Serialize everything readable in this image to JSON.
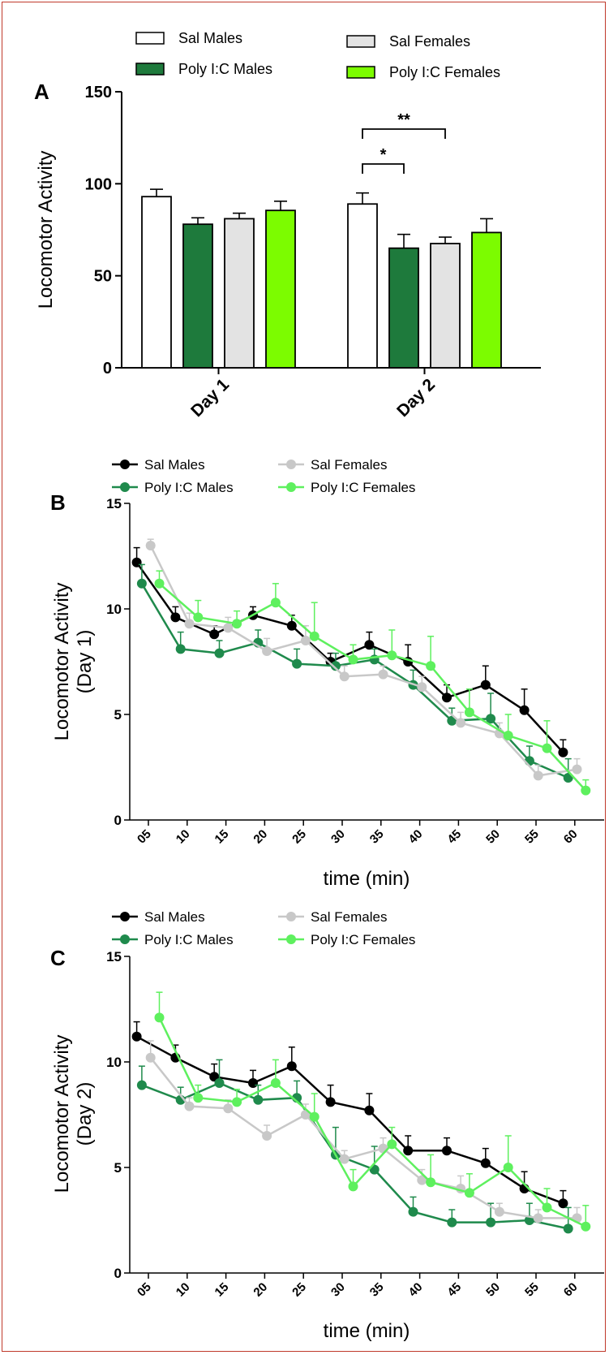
{
  "chart_data": [
    {
      "panel": "A",
      "type": "bar",
      "ylabel": "Locomotor Activity",
      "ylim": [
        0,
        150
      ],
      "yticks": [
        "0",
        "50",
        "100",
        "150"
      ],
      "categories": [
        "Day 1",
        "Day 2"
      ],
      "series": [
        {
          "name": "Sal Males",
          "color": "#ffffff",
          "values": [
            93,
            89
          ],
          "errors": [
            4,
            6
          ]
        },
        {
          "name": "Poly I:C Males",
          "color": "#1e7a3c",
          "values": [
            78,
            65
          ],
          "errors": [
            3.5,
            7.5
          ]
        },
        {
          "name": "Sal Females",
          "color": "#e3e3e3",
          "values": [
            81,
            67.5
          ],
          "errors": [
            3,
            3.5
          ]
        },
        {
          "name": "Poly I:C Females",
          "color": "#7cfc00",
          "values": [
            85.5,
            73.5
          ],
          "errors": [
            5,
            7.5
          ]
        }
      ],
      "significance": [
        {
          "label": "*",
          "category": "Day 2",
          "from": "Sal Males",
          "to": "Poly I:C Males"
        },
        {
          "label": "**",
          "category": "Day 2",
          "from": "Sal Males",
          "to": "Sal Females"
        }
      ]
    },
    {
      "panel": "B",
      "type": "line",
      "ylabel": "Locomotor Activity (Day 1)",
      "xlabel": "time (min)",
      "ylim": [
        0,
        15
      ],
      "yticks": [
        "0",
        "5",
        "10",
        "15"
      ],
      "x": [
        "05",
        "10",
        "15",
        "20",
        "25",
        "30",
        "35",
        "40",
        "45",
        "50",
        "55",
        "60"
      ],
      "series": [
        {
          "name": "Sal Males",
          "color": "#000000",
          "offset": -1.6,
          "values": [
            12.2,
            9.6,
            8.8,
            9.7,
            9.2,
            7.5,
            8.3,
            7.5,
            5.8,
            6.4,
            5.2,
            3.2
          ],
          "errors": [
            0.7,
            0.5,
            0.4,
            0.4,
            0.5,
            0.4,
            0.6,
            0.8,
            0.6,
            0.9,
            1.0,
            0.6
          ]
        },
        {
          "name": "Poly I:C Males",
          "color": "#1f8a4c",
          "offset": -0.9,
          "values": [
            11.2,
            8.1,
            7.9,
            8.4,
            7.4,
            7.3,
            7.6,
            6.4,
            4.7,
            4.8,
            2.8,
            2.0
          ],
          "errors": [
            0.9,
            0.8,
            0.6,
            0.6,
            0.7,
            0.6,
            0.5,
            0.7,
            0.6,
            1.2,
            0.7,
            0.9
          ]
        },
        {
          "name": "Sal Females",
          "color": "#c8c8c8",
          "offset": 0.3,
          "values": [
            13.0,
            9.3,
            9.1,
            8.0,
            8.5,
            6.8,
            6.9,
            6.3,
            4.6,
            4.1,
            2.1,
            2.4
          ],
          "errors": [
            0.3,
            0.5,
            0.5,
            0.6,
            0.7,
            0.5,
            0.4,
            0.5,
            0.5,
            0.5,
            0.5,
            0.5
          ]
        },
        {
          "name": "Poly I:C Females",
          "color": "#5ef05e",
          "offset": 1.5,
          "values": [
            11.2,
            9.6,
            9.3,
            10.3,
            8.7,
            7.6,
            7.8,
            7.3,
            5.1,
            4.0,
            3.4,
            1.4
          ],
          "errors": [
            0.6,
            0.8,
            0.6,
            0.9,
            1.6,
            0.7,
            1.2,
            1.4,
            1.1,
            1.0,
            1.3,
            0.5
          ]
        }
      ]
    },
    {
      "panel": "C",
      "type": "line",
      "ylabel": "Locomotor Activity (Day 2)",
      "xlabel": "time (min)",
      "ylim": [
        0,
        15
      ],
      "yticks": [
        "0",
        "5",
        "10",
        "15"
      ],
      "x": [
        "05",
        "10",
        "15",
        "20",
        "25",
        "30",
        "35",
        "40",
        "45",
        "50",
        "55",
        "60"
      ],
      "series": [
        {
          "name": "Sal Males",
          "color": "#000000",
          "offset": -1.6,
          "values": [
            11.2,
            10.2,
            9.3,
            9.0,
            9.8,
            8.1,
            7.7,
            5.8,
            5.8,
            5.2,
            4.0,
            3.3
          ],
          "errors": [
            0.7,
            0.6,
            0.6,
            0.6,
            0.9,
            0.8,
            0.8,
            0.7,
            0.6,
            0.7,
            0.8,
            0.6
          ]
        },
        {
          "name": "Poly I:C Males",
          "color": "#1f8a4c",
          "offset": -0.9,
          "values": [
            8.9,
            8.2,
            9.0,
            8.2,
            8.3,
            5.6,
            4.9,
            2.9,
            2.4,
            2.4,
            2.5,
            2.1
          ],
          "errors": [
            0.9,
            0.6,
            1.1,
            0.7,
            0.8,
            1.3,
            1.1,
            0.7,
            0.6,
            0.9,
            0.8,
            1.0
          ]
        },
        {
          "name": "Sal Females",
          "color": "#c8c8c8",
          "offset": 0.3,
          "values": [
            10.2,
            7.9,
            7.8,
            6.5,
            7.5,
            5.4,
            5.9,
            4.4,
            4.0,
            2.9,
            2.6,
            2.6
          ],
          "errors": [
            0.8,
            0.4,
            0.4,
            0.5,
            0.5,
            0.4,
            0.5,
            0.5,
            0.6,
            0.4,
            0.4,
            0.5
          ]
        },
        {
          "name": "Poly I:C Females",
          "color": "#5ef05e",
          "offset": 1.5,
          "values": [
            12.1,
            8.3,
            8.1,
            9.0,
            7.4,
            4.1,
            6.1,
            4.3,
            3.8,
            5.0,
            3.1,
            2.2
          ],
          "errors": [
            1.2,
            0.6,
            0.6,
            1.1,
            1.1,
            0.8,
            0.8,
            1.3,
            0.9,
            1.5,
            0.9,
            1.0
          ]
        }
      ]
    }
  ],
  "labels": {
    "a": "A",
    "b": "B",
    "c": "C"
  }
}
